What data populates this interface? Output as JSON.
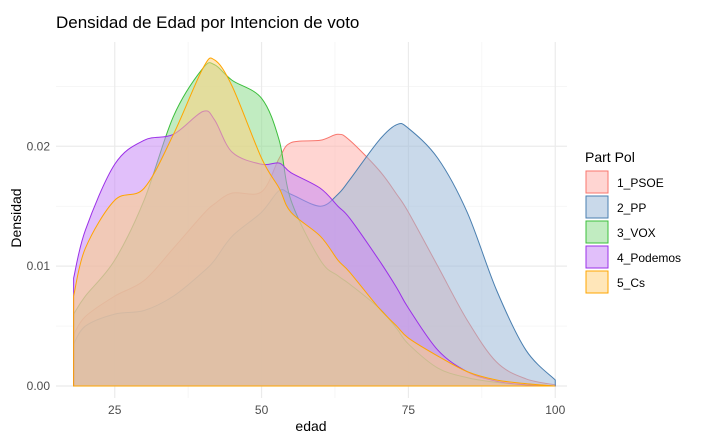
{
  "chart_data": {
    "type": "area",
    "title": "Densidad de Edad por Intencion de voto",
    "xlabel": "edad",
    "ylabel": "Densidad",
    "xlim": [
      15,
      102
    ],
    "ylim": [
      -0.001,
      0.0287
    ],
    "xticks": [
      25,
      50,
      75,
      100
    ],
    "yticks": [
      0.0,
      0.01,
      0.02
    ],
    "ytick_labels": [
      "0.00",
      "0.01",
      "0.02"
    ],
    "grid": true,
    "legend": {
      "title": "Part Pol",
      "placement": "right"
    },
    "x": [
      18,
      20,
      25,
      30,
      35,
      40,
      42,
      45,
      50,
      53,
      55,
      60,
      63,
      65,
      70,
      73,
      75,
      80,
      85,
      90,
      95,
      100
    ],
    "series": [
      {
        "name": "1_PSOE",
        "color": "#F8766D",
        "fill": "#FFB3AD",
        "values": [
          0.0043,
          0.0058,
          0.0075,
          0.0088,
          0.0115,
          0.0143,
          0.0152,
          0.0161,
          0.0162,
          0.019,
          0.0203,
          0.0205,
          0.021,
          0.0205,
          0.018,
          0.016,
          0.0145,
          0.01,
          0.0055,
          0.002,
          0.0006,
          0.0001
        ]
      },
      {
        "name": "2_PP",
        "color": "#4A7FB0",
        "fill": "#9DB9D8",
        "values": [
          0.0035,
          0.005,
          0.006,
          0.0063,
          0.0075,
          0.0095,
          0.0105,
          0.0125,
          0.0145,
          0.0163,
          0.016,
          0.015,
          0.016,
          0.0172,
          0.0205,
          0.0218,
          0.0215,
          0.019,
          0.0145,
          0.008,
          0.003,
          0.0005
        ]
      },
      {
        "name": "3_VOX",
        "color": "#3CBF3C",
        "fill": "#8EDC8E",
        "values": [
          0.006,
          0.0075,
          0.0105,
          0.0155,
          0.0225,
          0.0265,
          0.0268,
          0.0255,
          0.024,
          0.0205,
          0.0155,
          0.0105,
          0.0092,
          0.0085,
          0.0065,
          0.0048,
          0.0035,
          0.0015,
          0.0007,
          0.0003,
          0.0001,
          0.0
        ]
      },
      {
        "name": "4_Podemos",
        "color": "#9B30E8",
        "fill": "#C98AF5",
        "values": [
          0.009,
          0.013,
          0.0185,
          0.0205,
          0.021,
          0.0229,
          0.0222,
          0.0195,
          0.0185,
          0.0186,
          0.0178,
          0.0165,
          0.015,
          0.014,
          0.0105,
          0.0082,
          0.0065,
          0.003,
          0.0012,
          0.0004,
          0.0001,
          0.0
        ]
      },
      {
        "name": "5_Cs",
        "color": "#FFA500",
        "fill": "#FFD27F",
        "values": [
          0.0075,
          0.0115,
          0.0155,
          0.0165,
          0.021,
          0.0265,
          0.0272,
          0.025,
          0.019,
          0.0165,
          0.0145,
          0.0125,
          0.0105,
          0.0095,
          0.0065,
          0.005,
          0.004,
          0.0025,
          0.0012,
          0.0005,
          0.0002,
          0.0
        ]
      }
    ]
  }
}
